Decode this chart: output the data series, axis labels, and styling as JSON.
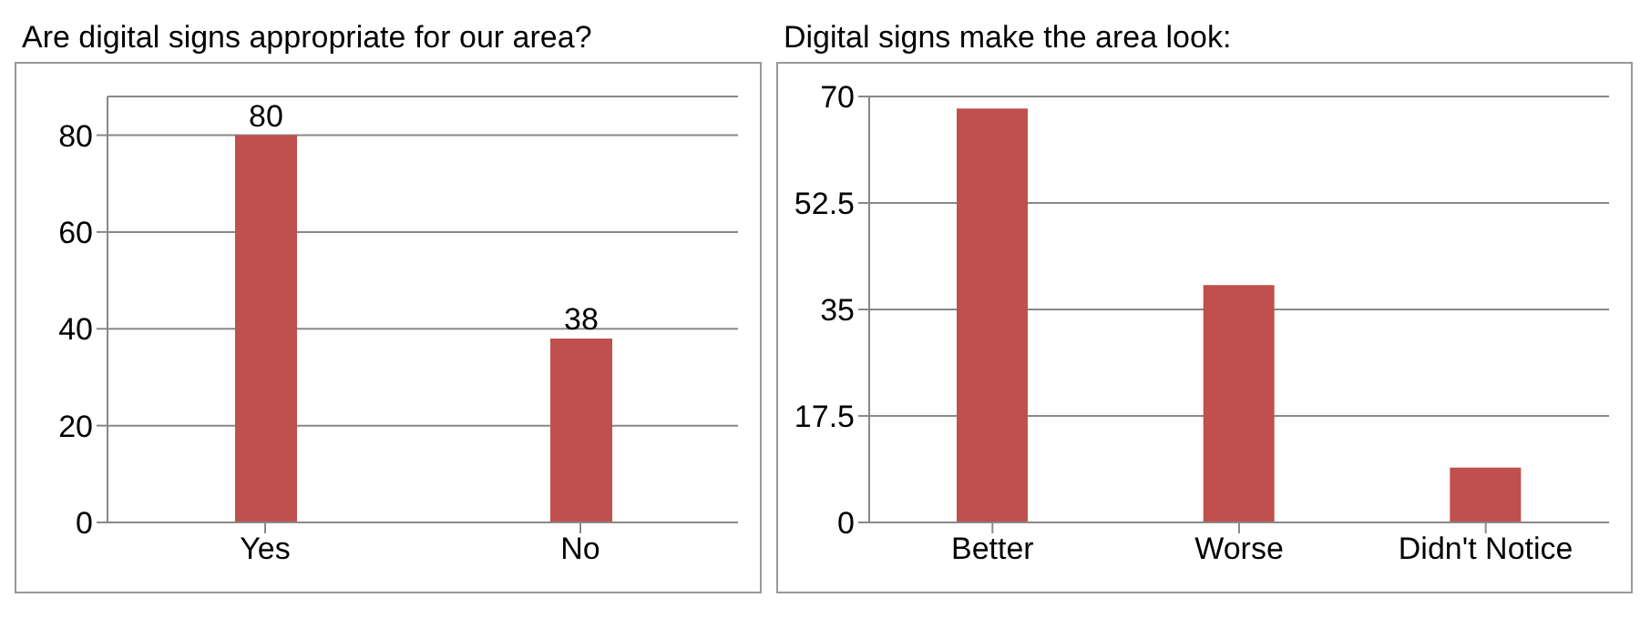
{
  "chart_data": [
    {
      "type": "bar",
      "title": "Are digital signs appropriate for our area?",
      "categories": [
        "Yes",
        "No"
      ],
      "values": [
        80,
        38
      ],
      "color": "#c0504d",
      "ylim": [
        0,
        88
      ],
      "yticks": [
        0,
        20,
        40,
        60,
        80
      ],
      "grid": "y",
      "data_labels": true
    },
    {
      "type": "bar",
      "title": "Digital signs make the area look:",
      "categories": [
        "Better",
        "Worse",
        "Didn't Notice"
      ],
      "values": [
        68,
        39,
        9
      ],
      "color": "#c0504d",
      "ylim": [
        0,
        70
      ],
      "yticks": [
        0,
        17.5,
        35,
        52.5,
        70
      ],
      "grid": "y"
    }
  ]
}
